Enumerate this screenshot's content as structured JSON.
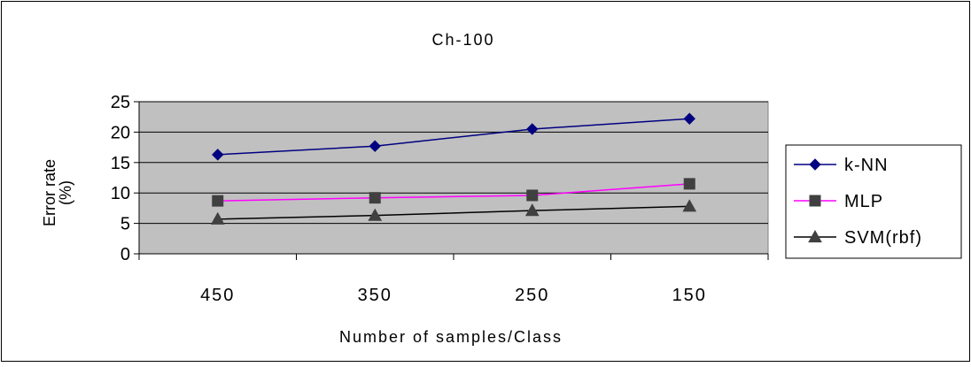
{
  "chart_data": {
    "type": "line",
    "title": "Ch-100",
    "xlabel": "Number of samples/Class",
    "ylabel_line1": "Error rate",
    "ylabel_line2": "(%)",
    "categories": [
      "450",
      "350",
      "250",
      "150"
    ],
    "ylim": [
      0,
      25
    ],
    "yticks": [
      "0",
      "5",
      "10",
      "15",
      "20",
      "25"
    ],
    "grid": true,
    "legend_position": "right",
    "series": [
      {
        "name": "k-NN",
        "values": [
          16.3,
          17.7,
          20.5,
          22.2
        ],
        "color": "#000080",
        "marker": "diamond"
      },
      {
        "name": "MLP",
        "values": [
          8.7,
          9.2,
          9.6,
          11.5
        ],
        "color": "#ff00ff",
        "marker": "square"
      },
      {
        "name": "SVM(rbf)",
        "values": [
          5.7,
          6.3,
          7.1,
          7.8
        ],
        "color": "#000000",
        "marker": "triangle"
      }
    ],
    "plot_background": "#c0c0c0"
  }
}
